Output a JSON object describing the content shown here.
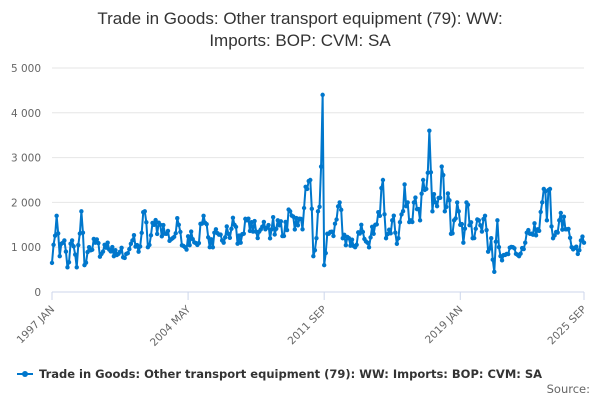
{
  "chart_data": {
    "type": "line",
    "title_lines": [
      "Trade in Goods: Other transport equipment (79): WW:",
      "Imports: BOP: CVM: SA"
    ],
    "xlabel": "",
    "ylabel": "",
    "ylim": [
      0,
      5000
    ],
    "yticks": [
      0,
      1000,
      2000,
      3000,
      4000,
      5000
    ],
    "ytick_labels": [
      "0",
      "1 000",
      "2 000",
      "3 000",
      "4 000",
      "5 000"
    ],
    "x_range": [
      "1997 JAN",
      "2025 SEP"
    ],
    "xtick_labels": [
      "1997 JAN",
      "2004 MAY",
      "2011 SEP",
      "2019 JAN",
      "2025 SEP"
    ],
    "xtick_positions": [
      0,
      88,
      176,
      264,
      344
    ],
    "grid": true,
    "legend_position": "bottom",
    "series": [
      {
        "name": "Trade in Goods: Other transport equipment (79): WW: Imports: BOP: CVM: SA",
        "color": "#0077cc",
        "anchors": [
          [
            0,
            650
          ],
          [
            3,
            1700
          ],
          [
            5,
            800
          ],
          [
            8,
            1150
          ],
          [
            10,
            550
          ],
          [
            13,
            1150
          ],
          [
            16,
            550
          ],
          [
            19,
            1800
          ],
          [
            21,
            600
          ],
          [
            24,
            1000
          ],
          [
            28,
            1100
          ],
          [
            32,
            850
          ],
          [
            36,
            1100
          ],
          [
            40,
            800
          ],
          [
            44,
            900
          ],
          [
            48,
            850
          ],
          [
            52,
            1150
          ],
          [
            56,
            900
          ],
          [
            60,
            1800
          ],
          [
            62,
            1000
          ],
          [
            66,
            1500
          ],
          [
            70,
            1500
          ],
          [
            74,
            1300
          ],
          [
            78,
            1200
          ],
          [
            82,
            1500
          ],
          [
            86,
            1000
          ],
          [
            90,
            1350
          ],
          [
            94,
            1050
          ],
          [
            98,
            1700
          ],
          [
            102,
            1000
          ],
          [
            106,
            1400
          ],
          [
            110,
            1150
          ],
          [
            114,
            1300
          ],
          [
            118,
            1500
          ],
          [
            122,
            1100
          ],
          [
            126,
            1600
          ],
          [
            130,
            1350
          ],
          [
            134,
            1350
          ],
          [
            138,
            1400
          ],
          [
            142,
            1400
          ],
          [
            146,
            1600
          ],
          [
            150,
            1250
          ],
          [
            154,
            1800
          ],
          [
            158,
            1650
          ],
          [
            162,
            1400
          ],
          [
            165,
            2300
          ],
          [
            167,
            2500
          ],
          [
            169,
            800
          ],
          [
            171,
            1200
          ],
          [
            172,
            1800
          ],
          [
            174,
            2800
          ],
          [
            175,
            4400
          ],
          [
            176,
            600
          ],
          [
            178,
            1300
          ],
          [
            182,
            1250
          ],
          [
            186,
            2000
          ],
          [
            188,
            1200
          ],
          [
            192,
            1200
          ],
          [
            196,
            1000
          ],
          [
            200,
            1500
          ],
          [
            204,
            1100
          ],
          [
            208,
            1300
          ],
          [
            212,
            1700
          ],
          [
            214,
            2500
          ],
          [
            216,
            1200
          ],
          [
            220,
            1600
          ],
          [
            224,
            1200
          ],
          [
            228,
            2400
          ],
          [
            230,
            2000
          ],
          [
            232,
            1600
          ],
          [
            234,
            2000
          ],
          [
            236,
            1850
          ],
          [
            238,
            1600
          ],
          [
            240,
            2500
          ],
          [
            242,
            2300
          ],
          [
            244,
            3600
          ],
          [
            246,
            1800
          ],
          [
            248,
            2000
          ],
          [
            250,
            2100
          ],
          [
            252,
            2800
          ],
          [
            254,
            1800
          ],
          [
            256,
            2200
          ],
          [
            258,
            1300
          ],
          [
            260,
            1600
          ],
          [
            262,
            2000
          ],
          [
            264,
            1500
          ],
          [
            266,
            1100
          ],
          [
            268,
            2000
          ],
          [
            272,
            1200
          ],
          [
            276,
            1600
          ],
          [
            278,
            1350
          ],
          [
            280,
            1700
          ],
          [
            282,
            900
          ],
          [
            284,
            1200
          ],
          [
            286,
            450
          ],
          [
            288,
            1600
          ],
          [
            290,
            800
          ],
          [
            294,
            850
          ],
          [
            298,
            1000
          ],
          [
            302,
            800
          ],
          [
            306,
            1100
          ],
          [
            310,
            1300
          ],
          [
            314,
            1400
          ],
          [
            318,
            2300
          ],
          [
            320,
            1600
          ],
          [
            322,
            2300
          ],
          [
            324,
            1200
          ],
          [
            328,
            1600
          ],
          [
            332,
            1400
          ],
          [
            336,
            1000
          ],
          [
            340,
            850
          ],
          [
            342,
            1150
          ],
          [
            344,
            1100
          ]
        ]
      }
    ],
    "source_label": "Source:"
  }
}
